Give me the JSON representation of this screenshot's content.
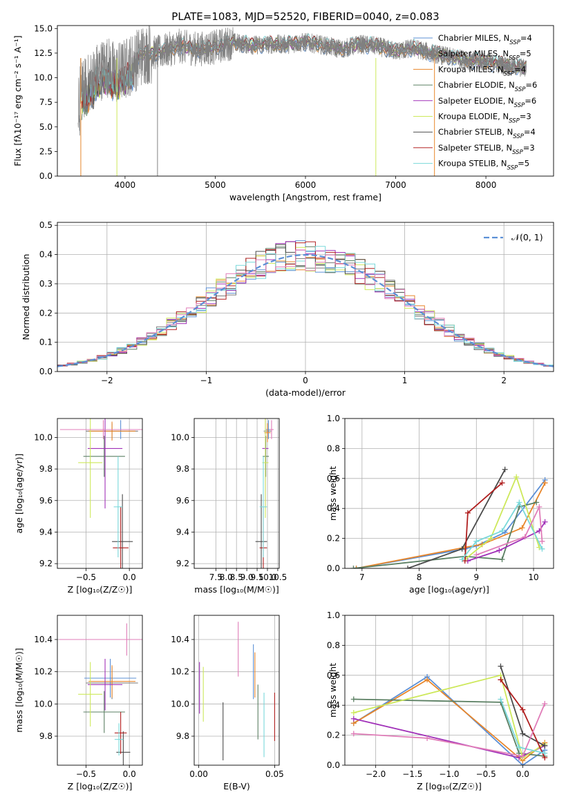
{
  "figure_title": "PLATE=1083, MJD=52520, FIBERID=0040, z=0.083",
  "colors": {
    "Chabrier MILES": "#5b8fd6",
    "Salpeter MILES": "#7a7a7a",
    "Kroupa MILES": "#e8862a",
    "Chabrier ELODIE": "#5a7f62",
    "Salpeter ELODIE": "#a030b8",
    "Kroupa ELODIE": "#cde85a",
    "Chabrier STELIB": "#4a4a4a",
    "Salpeter STELIB": "#b01e1e",
    "Kroupa STELIB": "#78d8da",
    "data": "#808080",
    "gauss": "#5b8fd6",
    "pink": "#e07cb8"
  },
  "legend_spectrum": [
    {
      "model": "Chabrier MILES",
      "n": "4"
    },
    {
      "model": "Salpeter MILES",
      "n": "5"
    },
    {
      "model": "Kroupa MILES",
      "n": "4"
    },
    {
      "model": "Chabrier ELODIE",
      "n": "6"
    },
    {
      "model": "Salpeter ELODIE",
      "n": "6"
    },
    {
      "model": "Kroupa ELODIE",
      "n": "3"
    },
    {
      "model": "Chabrier STELIB",
      "n": "4"
    },
    {
      "model": "Salpeter STELIB",
      "n": "3"
    },
    {
      "model": "Kroupa STELIB",
      "n": "5"
    }
  ],
  "chart_data": [
    {
      "id": "spectrum",
      "type": "line",
      "xlabel": "wavelength [Angstrom, rest frame]",
      "ylabel": "Flux [fλ10⁻¹⁷ erg cm⁻² s⁻¹ A⁻¹]",
      "xlim": [
        3250,
        8750
      ],
      "ylim": [
        0,
        15.3
      ],
      "xticks": [
        4000,
        5000,
        6000,
        7000,
        8000
      ],
      "yticks": [
        0.0,
        2.5,
        5.0,
        7.5,
        10.0,
        12.5,
        15.0
      ],
      "continuum": {
        "x": [
          3520,
          3600,
          3700,
          3800,
          3900,
          4000,
          4100,
          4200,
          4400,
          4600,
          4800,
          5000,
          5200,
          5400,
          5600,
          5800,
          6000,
          6200,
          6400,
          6600,
          6800,
          7000,
          7200,
          7400,
          7600,
          7800,
          8000,
          8200,
          8400
        ],
        "y": [
          8.6,
          9.4,
          10.6,
          11.2,
          10.4,
          10.9,
          11.6,
          12.4,
          12.6,
          13.2,
          12.9,
          13.1,
          13.6,
          13.3,
          13.4,
          13.4,
          13.6,
          13.3,
          12.9,
          13.4,
          13.2,
          12.7,
          13.0,
          12.5,
          12.1,
          11.8,
          11.6,
          11.3,
          11.0
        ]
      },
      "data_range": [
        3480,
        8450
      ],
      "gap_lines_x": [
        3510,
        3910,
        4360,
        6780,
        7430
      ]
    },
    {
      "id": "residual_histogram",
      "type": "bar",
      "xlabel": "(data-model)/error",
      "ylabel": "Normed distribution",
      "xlim": [
        -2.5,
        2.5
      ],
      "ylim": [
        0,
        0.51
      ],
      "xticks": [
        -2,
        -1,
        0,
        1,
        2
      ],
      "yticks": [
        0.0,
        0.1,
        0.2,
        0.3,
        0.4,
        0.5
      ],
      "bin_width": 0.1,
      "legend": "𝒩(0, 1)",
      "grid": true
    },
    {
      "id": "age_vs_Z",
      "type": "scatter",
      "xlabel": "Z [log₁₀(Z/Z☉)]",
      "ylabel": "age  [log₁₀(age/yr)]",
      "xlim": [
        -0.83,
        0.15
      ],
      "ylim": [
        9.17,
        10.12
      ],
      "xticks": [
        -0.5,
        0.0
      ],
      "yticks": [
        9.2,
        9.4,
        9.6,
        9.8,
        10.0
      ],
      "points": [
        {
          "model": "Chabrier MILES",
          "x": -0.1,
          "y": 10.05,
          "xerr": 0.44,
          "yerr": 0.06
        },
        {
          "model": "Salpeter MILES",
          "x": -0.2,
          "y": 10.04,
          "xerr": 0.3,
          "yerr": 0.05
        },
        {
          "model": "Kroupa MILES",
          "x": -0.2,
          "y": 10.04,
          "xerr": 0.27,
          "yerr": 0.06
        },
        {
          "model": "Chabrier ELODIE",
          "x": -0.29,
          "y": 9.88,
          "xerr": 0.24,
          "yerr": 0.13
        },
        {
          "model": "Salpeter ELODIE",
          "x": -0.28,
          "y": 9.93,
          "xerr": 0.2,
          "yerr": 0.38
        },
        {
          "model": "Kroupa ELODIE",
          "x": -0.45,
          "y": 9.84,
          "xerr": 0.14,
          "yerr": 0.35
        },
        {
          "model": "Chabrier STELIB",
          "x": -0.08,
          "y": 9.34,
          "xerr": 0.12,
          "yerr": 0.3
        },
        {
          "model": "Salpeter STELIB",
          "x": -0.1,
          "y": 9.3,
          "xerr": 0.09,
          "yerr": 0.26
        },
        {
          "model": "Kroupa STELIB",
          "x": -0.13,
          "y": 9.56,
          "xerr": 0.05,
          "yerr": 0.32
        },
        {
          "model": "pink",
          "x": -0.3,
          "y": 10.05,
          "xerr": 0.5,
          "yerr": 0.06
        }
      ]
    },
    {
      "id": "age_vs_mass",
      "type": "scatter",
      "xlabel": "mass [log₁₀(M/M☉)]",
      "ylabel": "",
      "xlim": [
        6.45,
        10.57
      ],
      "ylim": [
        9.17,
        10.12
      ],
      "xticks": [
        7.5,
        8.0,
        8.5,
        9.0,
        9.5,
        10.0,
        10.5
      ],
      "yticks": [
        9.2,
        9.4,
        9.6,
        9.8,
        10.0
      ],
      "points": [
        {
          "model": "Chabrier MILES",
          "x": 10.05,
          "y": 10.05,
          "xerr": 0.12,
          "yerr": 0.06
        },
        {
          "model": "Salpeter MILES",
          "x": 10.0,
          "y": 10.04,
          "xerr": 0.18,
          "yerr": 0.05
        },
        {
          "model": "Kroupa MILES",
          "x": 10.0,
          "y": 10.03,
          "xerr": 0.15,
          "yerr": 0.06
        },
        {
          "model": "Chabrier ELODIE",
          "x": 9.92,
          "y": 9.88,
          "xerr": 0.15,
          "yerr": 0.13
        },
        {
          "model": "Salpeter ELODIE",
          "x": 9.9,
          "y": 9.93,
          "xerr": 0.15,
          "yerr": 0.38
        },
        {
          "model": "Kroupa ELODIE",
          "x": 9.9,
          "y": 9.84,
          "xerr": 0.15,
          "yerr": 0.35
        },
        {
          "model": "Chabrier STELIB",
          "x": 9.7,
          "y": 9.34,
          "xerr": 0.28,
          "yerr": 0.3
        },
        {
          "model": "Salpeter STELIB",
          "x": 9.8,
          "y": 9.3,
          "xerr": 0.18,
          "yerr": 0.26
        },
        {
          "model": "Kroupa STELIB",
          "x": 9.8,
          "y": 9.56,
          "xerr": 0.18,
          "yerr": 0.32
        },
        {
          "model": "pink",
          "x": 10.2,
          "y": 10.05,
          "xerr": 0.1,
          "yerr": 0.06
        }
      ]
    },
    {
      "id": "weight_vs_age",
      "type": "line",
      "xlabel": "age  [log₁₀(age/yr)]",
      "ylabel": "mass weight",
      "xlim": [
        6.7,
        10.35
      ],
      "ylim": [
        0,
        1.0
      ],
      "xticks": [
        7,
        8,
        9,
        10
      ],
      "yticks": [
        0.0,
        0.2,
        0.4,
        0.6,
        0.8,
        1.0
      ],
      "series": [
        {
          "model": "Chabrier MILES",
          "x": [
            6.9,
            8.8,
            9.0,
            9.5,
            10.2
          ],
          "y": [
            0.0,
            0.13,
            0.15,
            0.24,
            0.59
          ]
        },
        {
          "model": "Kroupa MILES",
          "x": [
            6.9,
            8.8,
            9.1,
            9.8,
            10.2
          ],
          "y": [
            0.0,
            0.14,
            0.16,
            0.27,
            0.57
          ]
        },
        {
          "model": "Chabrier ELODIE",
          "x": [
            6.85,
            8.8,
            9.45,
            9.75,
            10.05
          ],
          "y": [
            0.0,
            0.08,
            0.06,
            0.41,
            0.44
          ]
        },
        {
          "model": "Salpeter ELODIE",
          "x": [
            8.85,
            9.4,
            10.1,
            10.2
          ],
          "y": [
            0.05,
            0.12,
            0.25,
            0.31
          ]
        },
        {
          "model": "Kroupa ELODIE",
          "x": [
            8.8,
            9.25,
            9.7,
            10.1
          ],
          "y": [
            0.06,
            0.2,
            0.61,
            0.14
          ]
        },
        {
          "model": "Chabrier STELIB",
          "x": [
            7.8,
            8.75,
            9.5
          ],
          "y": [
            0.0,
            0.13,
            0.66
          ]
        },
        {
          "model": "Salpeter STELIB",
          "x": [
            8.8,
            8.85,
            9.45
          ],
          "y": [
            0.05,
            0.37,
            0.57
          ]
        },
        {
          "model": "Kroupa STELIB",
          "x": [
            8.75,
            9.0,
            9.45,
            9.75,
            10.15
          ],
          "y": [
            0.06,
            0.18,
            0.25,
            0.44,
            0.13
          ]
        },
        {
          "model": "pink",
          "x": [
            9.0,
            9.85,
            10.1,
            10.15
          ],
          "y": [
            0.09,
            0.21,
            0.41,
            0.18
          ]
        }
      ]
    },
    {
      "id": "mass_vs_Z",
      "type": "scatter",
      "xlabel": "Z [log₁₀(Z/Z☉)]",
      "ylabel": "mass [log₁₀(M/M☉)]",
      "xlim": [
        -0.83,
        0.15
      ],
      "ylim": [
        9.62,
        10.55
      ],
      "xticks": [
        -0.5,
        0.0
      ],
      "yticks": [
        9.8,
        10.0,
        10.2,
        10.4
      ],
      "points": [
        {
          "model": "Chabrier MILES",
          "x": -0.22,
          "y": 10.16,
          "xerr": 0.3,
          "yerr": 0.12
        },
        {
          "model": "Salpeter MILES",
          "x": -0.2,
          "y": 10.13,
          "xerr": 0.3,
          "yerr": 0.1
        },
        {
          "model": "Kroupa MILES",
          "x": -0.2,
          "y": 10.14,
          "xerr": 0.27,
          "yerr": 0.1
        },
        {
          "model": "Chabrier ELODIE",
          "x": -0.29,
          "y": 9.95,
          "xerr": 0.24,
          "yerr": 0.13
        },
        {
          "model": "Salpeter ELODIE",
          "x": -0.28,
          "y": 10.12,
          "xerr": 0.2,
          "yerr": 0.16
        },
        {
          "model": "Kroupa ELODIE",
          "x": -0.45,
          "y": 10.06,
          "xerr": 0.14,
          "yerr": 0.2
        },
        {
          "model": "Chabrier STELIB",
          "x": -0.07,
          "y": 9.7,
          "xerr": 0.08,
          "yerr": 0.13
        },
        {
          "model": "Salpeter STELIB",
          "x": -0.1,
          "y": 9.82,
          "xerr": 0.07,
          "yerr": 0.13
        },
        {
          "model": "Kroupa STELIB",
          "x": -0.12,
          "y": 9.78,
          "xerr": 0.05,
          "yerr": 0.1
        },
        {
          "model": "pink",
          "x": -0.03,
          "y": 10.4,
          "xerr": 0.78,
          "yerr": 0.1
        }
      ]
    },
    {
      "id": "mass_vs_ebv",
      "type": "scatter",
      "xlabel": "E(B-V)",
      "ylabel": "",
      "xlim": [
        -0.003,
        0.053
      ],
      "ylim": [
        9.62,
        10.55
      ],
      "xticks": [
        0.0,
        0.05
      ],
      "yticks": [
        9.8,
        10.0,
        10.2,
        10.4
      ],
      "points": [
        {
          "model": "Chabrier MILES",
          "x": 0.036,
          "y": 10.2,
          "yerr": 0.17
        },
        {
          "model": "Kroupa MILES",
          "x": 0.037,
          "y": 10.18,
          "yerr": 0.14
        },
        {
          "model": "Chabrier ELODIE",
          "x": 0.039,
          "y": 9.95,
          "yerr": 0.17
        },
        {
          "model": "Salpeter ELODIE",
          "x": 0.0005,
          "y": 10.1,
          "yerr": 0.16
        },
        {
          "model": "Kroupa ELODIE",
          "x": 0.003,
          "y": 10.06,
          "yerr": 0.17
        },
        {
          "model": "Chabrier STELIB",
          "x": 0.016,
          "y": 9.83,
          "yerr": 0.18
        },
        {
          "model": "Salpeter STELIB",
          "x": 0.05,
          "y": 9.92,
          "yerr": 0.15
        },
        {
          "model": "Kroupa STELIB",
          "x": 0.043,
          "y": 9.87,
          "yerr": 0.2
        },
        {
          "model": "pink",
          "x": 0.026,
          "y": 10.34,
          "yerr": 0.17
        }
      ]
    },
    {
      "id": "weight_vs_Z",
      "type": "line",
      "xlabel": "Z [log₁₀(Z/Z☉)]",
      "ylabel": "mass weight",
      "xlim": [
        -2.42,
        0.42
      ],
      "ylim": [
        0,
        1.0
      ],
      "xticks": [
        -2.0,
        -1.5,
        -1.0,
        -0.5,
        0.0
      ],
      "yticks": [
        0.0,
        0.2,
        0.4,
        0.6,
        0.8,
        1.0
      ],
      "series": [
        {
          "model": "Chabrier MILES",
          "x": [
            -2.3,
            -1.3,
            0.0,
            0.3
          ],
          "y": [
            0.28,
            0.59,
            0.0,
            0.1
          ]
        },
        {
          "model": "Kroupa MILES",
          "x": [
            -2.3,
            -1.3,
            0.0,
            0.3
          ],
          "y": [
            0.28,
            0.57,
            0.03,
            0.15
          ]
        },
        {
          "model": "Chabrier ELODIE",
          "x": [
            -2.3,
            -0.3,
            -0.05,
            0.3
          ],
          "y": [
            0.44,
            0.42,
            0.08,
            0.06
          ]
        },
        {
          "model": "Salpeter ELODIE",
          "x": [
            -2.3,
            -0.05,
            0.3
          ],
          "y": [
            0.31,
            0.05,
            0.13
          ]
        },
        {
          "model": "Kroupa ELODIE",
          "x": [
            -2.3,
            -0.3,
            0.0,
            0.3
          ],
          "y": [
            0.35,
            0.6,
            0.05,
            0.14
          ]
        },
        {
          "model": "Chabrier STELIB",
          "x": [
            -0.3,
            0.0,
            0.3
          ],
          "y": [
            0.66,
            0.21,
            0.13
          ]
        },
        {
          "model": "Salpeter STELIB",
          "x": [
            -0.3,
            0.0,
            0.3
          ],
          "y": [
            0.57,
            0.37,
            0.05
          ]
        },
        {
          "model": "Kroupa STELIB",
          "x": [
            -0.3,
            -0.05,
            0.3
          ],
          "y": [
            0.44,
            0.12,
            0.08
          ]
        },
        {
          "model": "pink",
          "x": [
            -2.3,
            -1.3,
            0.0,
            0.3
          ],
          "y": [
            0.21,
            0.18,
            0.06,
            0.41
          ]
        }
      ]
    }
  ]
}
